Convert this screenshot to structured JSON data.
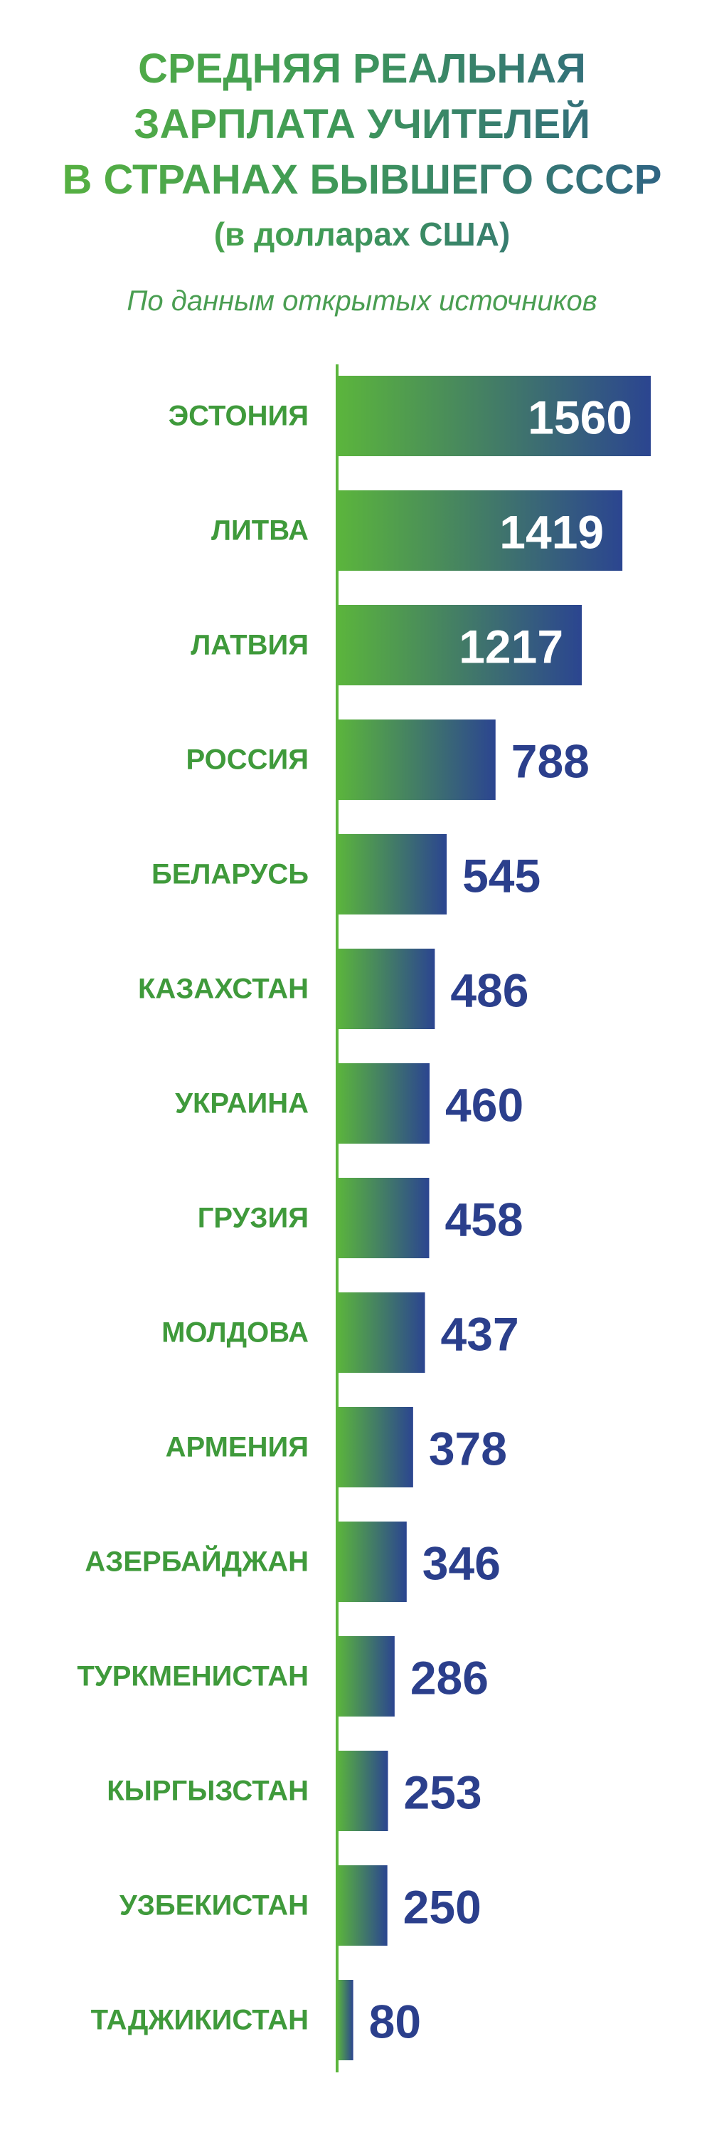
{
  "title": {
    "line1": "СРЕДНЯЯ РЕАЛЬНАЯ",
    "line2": "ЗАРПЛАТА УЧИТЕЛЕЙ",
    "line3": "В СТРАНАХ БЫВШЕГО СССР",
    "line4": "(в долларах США)"
  },
  "subtitle": "По данным открытых источников",
  "colors": {
    "title_gradient_start": "#5bb53c",
    "title_gradient_end": "#2d5a8c",
    "bar_gradient_start": "#5bb53c",
    "bar_gradient_end": "#2b4590",
    "category_label": "#3f9a3b",
    "value_label_outside": "#2b3f8c",
    "value_label_inside": "#ffffff",
    "axis": "#5bb53c"
  },
  "chart_data": {
    "type": "bar",
    "orientation": "horizontal",
    "categories": [
      "ЭСТОНИЯ",
      "ЛИТВА",
      "ЛАТВИЯ",
      "РОССИЯ",
      "БЕЛАРУСЬ",
      "КАЗАХСТАН",
      "УКРАИНА",
      "ГРУЗИЯ",
      "МОЛДОВА",
      "АРМЕНИЯ",
      "АЗЕРБАЙДЖАН",
      "ТУРКМЕНИСТАН",
      "КЫРГЫЗСТАН",
      "УЗБЕКИСТАН",
      "ТАДЖИКИСТАН"
    ],
    "values": [
      1560,
      1419,
      1217,
      788,
      545,
      486,
      460,
      458,
      437,
      378,
      346,
      286,
      253,
      250,
      80
    ],
    "data_labels_shown": true,
    "xlim": [
      0,
      1560
    ],
    "grid": false,
    "legend": false
  }
}
